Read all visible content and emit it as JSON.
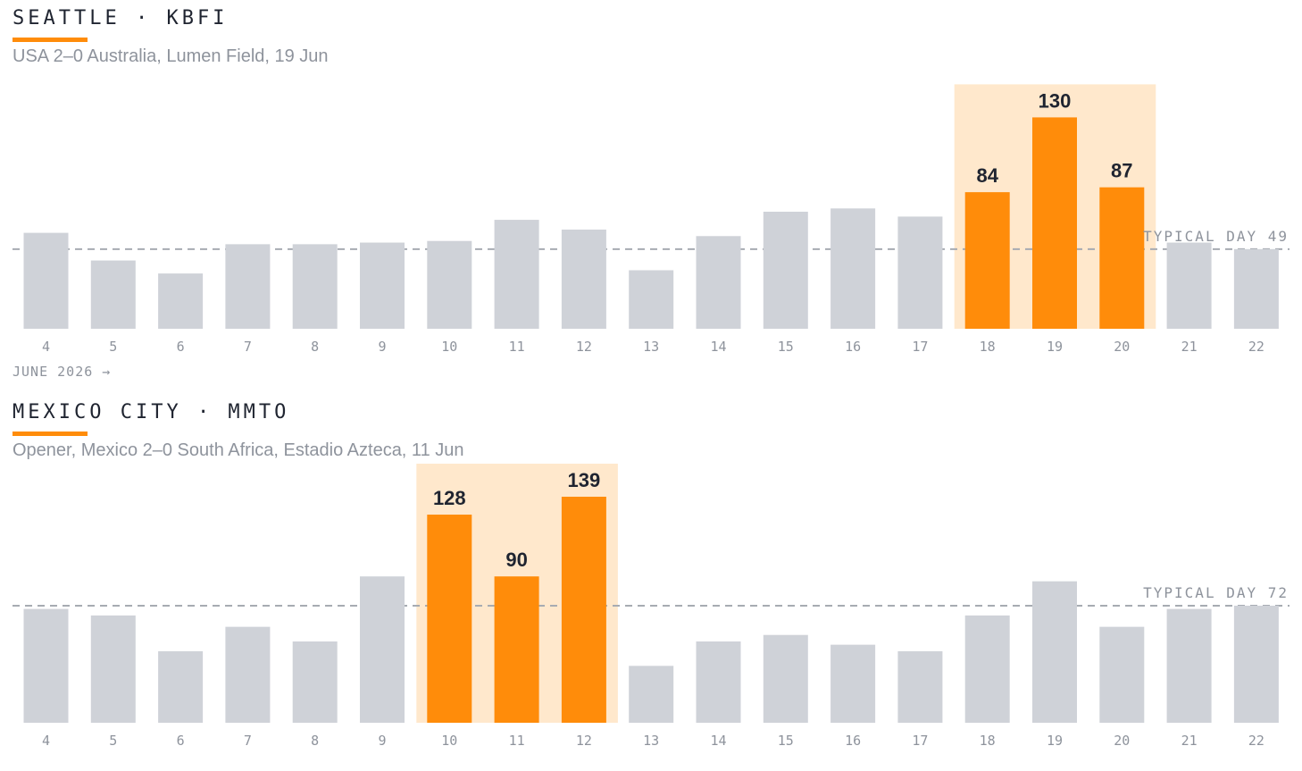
{
  "panels": [
    {
      "title": "SEATTLE · KBFI",
      "subtitle": "USA 2–0 Australia, Lumen Field, 19 Jun",
      "month_label": "JUNE 2026 →",
      "reference_label": "TYPICAL DAY 49"
    },
    {
      "title": "MEXICO CITY · MMTO",
      "subtitle": "Opener, Mexico 2–0 South Africa, Estadio Azteca, 11 Jun",
      "reference_label": "TYPICAL DAY 72"
    }
  ],
  "colors": {
    "base_bar": "#cfd2d8",
    "highlight_bar": "#ff8c0a",
    "highlight_band": "#ffe8cc",
    "reference_line": "#a7abb2",
    "accent": "#ff8c0a"
  },
  "chart_data": [
    {
      "type": "bar",
      "categories": [
        "4",
        "5",
        "6",
        "7",
        "8",
        "9",
        "10",
        "11",
        "12",
        "13",
        "14",
        "15",
        "16",
        "17",
        "18",
        "19",
        "20",
        "21",
        "22"
      ],
      "values": [
        59,
        42,
        34,
        52,
        52,
        53,
        54,
        67,
        61,
        36,
        57,
        72,
        74,
        69,
        84,
        130,
        87,
        53,
        49
      ],
      "highlight": [
        "18",
        "19",
        "20"
      ],
      "reference_value": 49,
      "ylim": [
        0,
        150
      ]
    },
    {
      "type": "bar",
      "categories": [
        "4",
        "5",
        "6",
        "7",
        "8",
        "9",
        "10",
        "11",
        "12",
        "13",
        "14",
        "15",
        "16",
        "17",
        "18",
        "19",
        "20",
        "21",
        "22"
      ],
      "values": [
        70,
        66,
        44,
        59,
        50,
        90,
        128,
        90,
        139,
        35,
        50,
        54,
        48,
        44,
        66,
        87,
        59,
        70,
        72
      ],
      "highlight": [
        "10",
        "11",
        "12"
      ],
      "reference_value": 72,
      "ylim": [
        0,
        150
      ]
    }
  ]
}
